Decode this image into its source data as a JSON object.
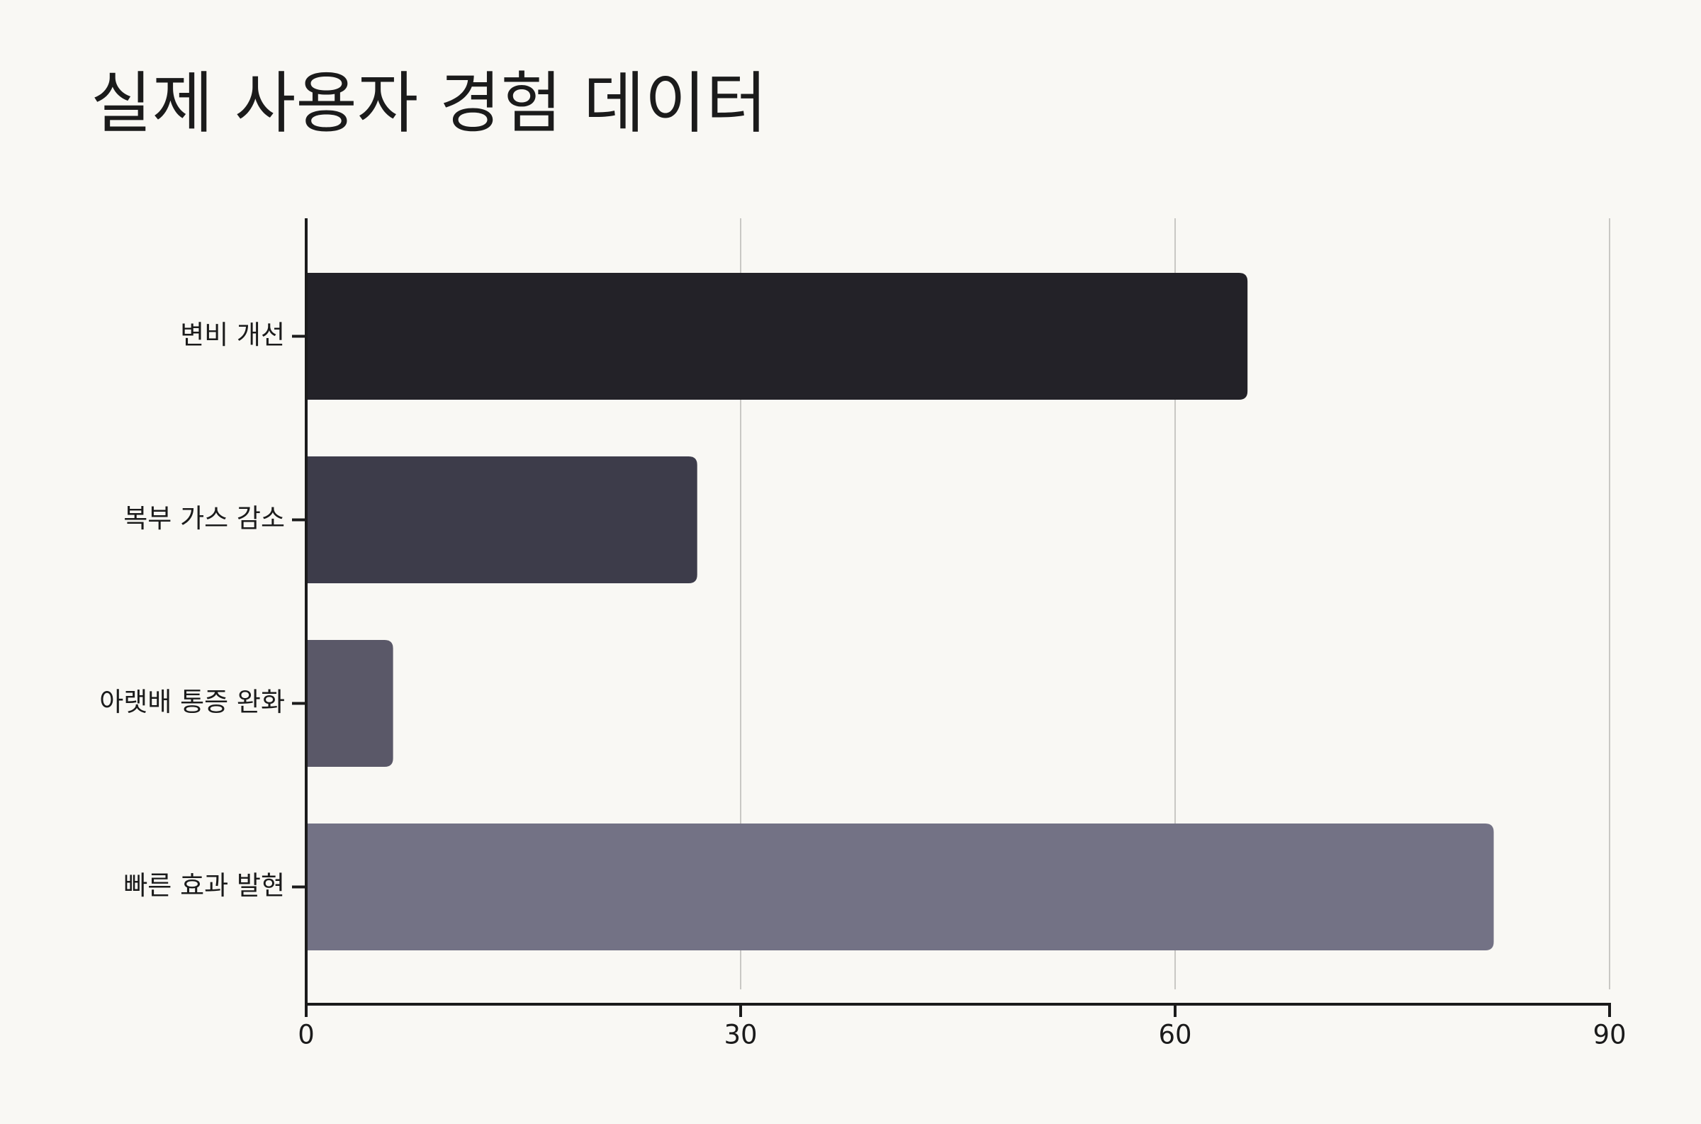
{
  "chart_data": {
    "type": "bar",
    "orientation": "horizontal",
    "title": "실제 사용자 경험 데이터",
    "categories": [
      "변비 개선",
      "복부 가스 감소",
      "아랫배 통증 완화",
      "빠른 효과 발현"
    ],
    "values": [
      65,
      27,
      6,
      82
    ],
    "colors": [
      "#232228",
      "#3d3c4a",
      "#5a5868",
      "#737285"
    ],
    "xlim": [
      0,
      90
    ],
    "xticks": [
      0,
      30,
      60,
      90
    ],
    "grid": true
  }
}
